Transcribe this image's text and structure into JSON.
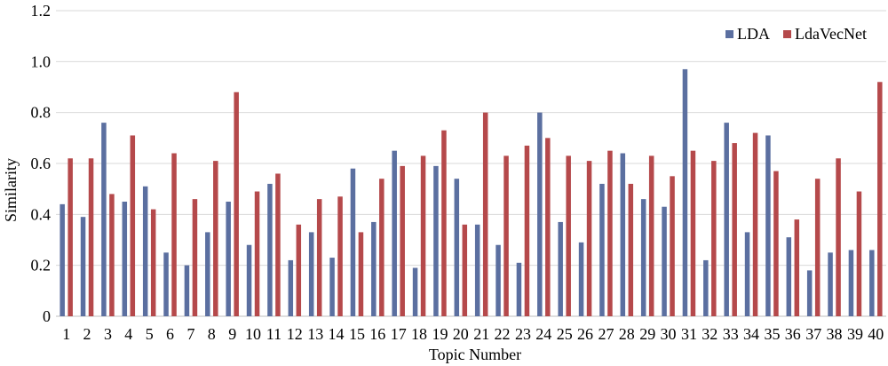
{
  "chart_data": {
    "type": "bar",
    "xlabel": "Topic Number",
    "ylabel": "Similarity",
    "ylim": [
      0,
      1.2
    ],
    "yticks": [
      "0",
      "0.2",
      "0.4",
      "0.6",
      "0.8",
      "1.0",
      "1.2"
    ],
    "grid": true,
    "legend_position": "top-right",
    "categories": [
      "1",
      "2",
      "3",
      "4",
      "5",
      "6",
      "7",
      "8",
      "9",
      "10",
      "11",
      "12",
      "13",
      "14",
      "15",
      "16",
      "17",
      "18",
      "19",
      "20",
      "21",
      "22",
      "23",
      "24",
      "25",
      "26",
      "27",
      "28",
      "29",
      "30",
      "31",
      "32",
      "33",
      "34",
      "35",
      "36",
      "37",
      "38",
      "39",
      "40"
    ],
    "series": [
      {
        "name": "LDA",
        "color": "#5b6fa0",
        "values": [
          0.44,
          0.39,
          0.76,
          0.45,
          0.51,
          0.25,
          0.2,
          0.33,
          0.45,
          0.28,
          0.52,
          0.22,
          0.33,
          0.23,
          0.58,
          0.37,
          0.65,
          0.19,
          0.59,
          0.54,
          0.36,
          0.28,
          0.21,
          0.8,
          0.37,
          0.29,
          0.52,
          0.64,
          0.46,
          0.43,
          0.97,
          0.22,
          0.76,
          0.33,
          0.71,
          0.31,
          0.18,
          0.25,
          0.26,
          0.26
        ]
      },
      {
        "name": "LdaVecNet",
        "color": "#b5494b",
        "values": [
          0.62,
          0.62,
          0.48,
          0.71,
          0.42,
          0.64,
          0.46,
          0.61,
          0.88,
          0.49,
          0.56,
          0.36,
          0.46,
          0.47,
          0.33,
          0.54,
          0.59,
          0.63,
          0.73,
          0.36,
          0.8,
          0.63,
          0.67,
          0.7,
          0.63,
          0.61,
          0.65,
          0.52,
          0.63,
          0.55,
          0.65,
          0.61,
          0.68,
          0.72,
          0.57,
          0.38,
          0.54,
          0.62,
          0.49,
          0.92
        ]
      }
    ]
  }
}
